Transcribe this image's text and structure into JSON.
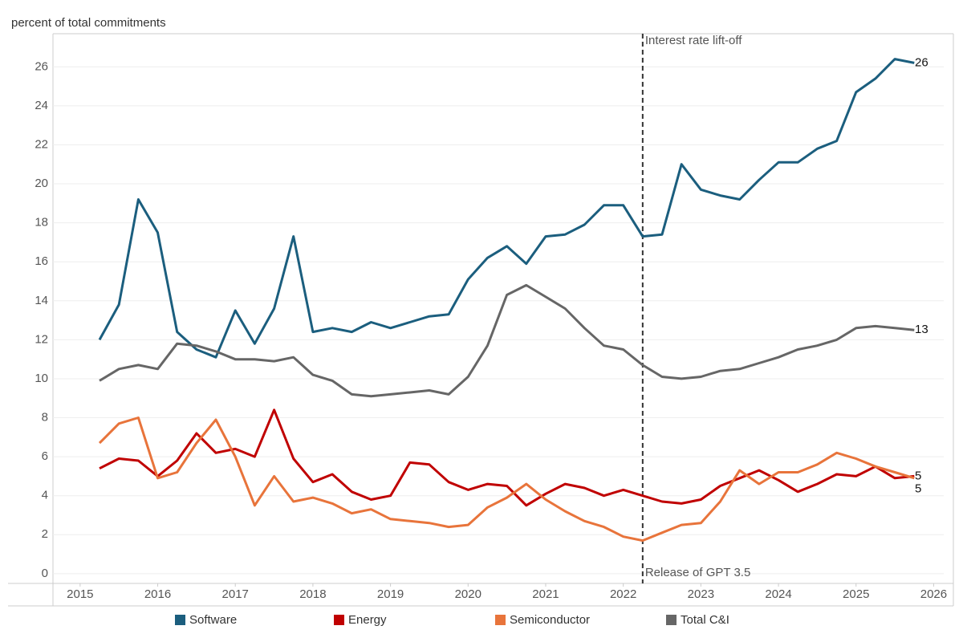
{
  "chart_data": {
    "type": "line",
    "y_label": "percent of total commitments",
    "x": [
      2015.25,
      2015.5,
      2015.75,
      2016,
      2016.25,
      2016.5,
      2016.75,
      2017,
      2017.25,
      2017.5,
      2017.75,
      2018,
      2018.25,
      2018.5,
      2018.75,
      2019,
      2019.25,
      2019.5,
      2019.75,
      2020,
      2020.25,
      2020.5,
      2020.75,
      2021,
      2021.25,
      2021.5,
      2021.75,
      2022,
      2022.25,
      2022.5,
      2022.75,
      2023,
      2023.25,
      2023.5,
      2023.75,
      2024,
      2024.25,
      2024.5,
      2024.75,
      2025,
      2025.25,
      2025.5,
      2025.75
    ],
    "series": [
      {
        "name": "Software",
        "color": "#1b5e7e",
        "end_label": "26",
        "values": [
          12.0,
          13.8,
          19.2,
          17.5,
          12.4,
          11.5,
          11.1,
          13.5,
          11.8,
          13.6,
          17.3,
          12.4,
          12.6,
          12.4,
          12.9,
          12.6,
          12.9,
          13.2,
          13.3,
          15.1,
          16.2,
          16.8,
          15.9,
          17.3,
          17.4,
          17.9,
          18.9,
          18.9,
          17.3,
          17.4,
          21.0,
          19.7,
          19.4,
          19.2,
          20.2,
          21.1,
          21.1,
          21.8,
          22.2,
          24.7,
          25.4,
          26.4,
          26.2
        ]
      },
      {
        "name": "Energy",
        "color": "#c00000",
        "end_label": "5",
        "values": [
          5.4,
          5.9,
          5.8,
          5.0,
          5.8,
          7.2,
          6.2,
          6.4,
          6.0,
          8.4,
          5.9,
          4.7,
          5.1,
          4.2,
          3.8,
          4.0,
          5.7,
          5.6,
          4.7,
          4.3,
          4.6,
          4.5,
          3.5,
          4.1,
          4.6,
          4.4,
          4.0,
          4.3,
          4.0,
          3.7,
          3.6,
          3.8,
          4.5,
          4.9,
          5.3,
          4.8,
          4.2,
          4.6,
          5.1,
          5.0,
          5.5,
          4.9,
          5.0
        ]
      },
      {
        "name": "Semiconductor",
        "color": "#e8743b",
        "end_label": "5",
        "values": [
          6.7,
          7.7,
          8.0,
          4.9,
          5.2,
          6.7,
          7.9,
          6.0,
          3.5,
          5.0,
          3.7,
          3.9,
          3.6,
          3.1,
          3.3,
          2.8,
          2.7,
          2.6,
          2.4,
          2.5,
          3.4,
          3.9,
          4.6,
          3.8,
          3.2,
          2.7,
          2.4,
          1.9,
          1.7,
          2.1,
          2.5,
          2.6,
          3.7,
          5.3,
          4.6,
          5.2,
          5.2,
          5.6,
          6.2,
          5.9,
          5.5,
          5.2,
          4.9
        ]
      },
      {
        "name": "Total C&I",
        "color": "#666666",
        "end_label": "13",
        "values": [
          9.9,
          10.5,
          10.7,
          10.5,
          11.8,
          11.7,
          11.4,
          11.0,
          11.0,
          10.9,
          11.1,
          10.2,
          9.9,
          9.2,
          9.1,
          9.2,
          9.3,
          9.4,
          9.2,
          10.1,
          11.7,
          14.3,
          14.8,
          14.2,
          13.6,
          12.6,
          11.7,
          11.5,
          10.7,
          10.1,
          10.0,
          10.1,
          10.4,
          10.5,
          10.8,
          11.1,
          11.5,
          11.7,
          12.0,
          12.6,
          12.7,
          12.6,
          12.5
        ]
      }
    ],
    "vline": {
      "x": 2022.25,
      "top_label": "Interest rate lift-off",
      "bottom_label": "Release of GPT 3.5"
    },
    "xlim": [
      2014.65,
      2026.13
    ],
    "xticks": [
      2015,
      2016,
      2017,
      2018,
      2019,
      2020,
      2021,
      2022,
      2023,
      2024,
      2025,
      2026
    ],
    "ylim": [
      -0.5,
      27.7
    ],
    "yticks": [
      0,
      2,
      4,
      6,
      8,
      10,
      12,
      14,
      16,
      18,
      20,
      22,
      24,
      26
    ],
    "grid": true
  }
}
